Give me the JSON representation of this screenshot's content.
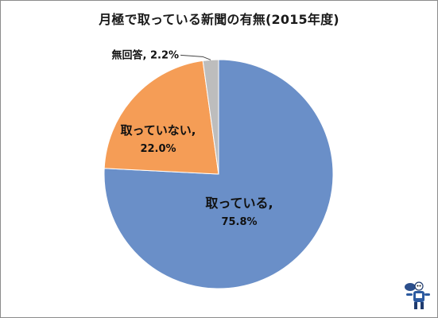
{
  "chart_data": {
    "type": "pie",
    "title": "月極で取っている新聞の有無(2015年度)",
    "slices": [
      {
        "name": "取っている",
        "value": 75.8,
        "pct_text": "75.8%",
        "color": "#6a8fc8"
      },
      {
        "name": "取っていない",
        "value": 22.0,
        "pct_text": "22.0%",
        "color": "#f59d56"
      },
      {
        "name": "無回答",
        "value": 2.2,
        "pct_text": "2.2%",
        "color": "#bdbdbd"
      }
    ],
    "start": "12 o'clock",
    "direction": "clockwise",
    "legend": "none",
    "labels": "category name and percentage"
  },
  "colors": {
    "border": "#8c8c8c",
    "slice_stroke": "#ffffff"
  },
  "icons": {
    "corner_mascot": "mascot-icon"
  }
}
